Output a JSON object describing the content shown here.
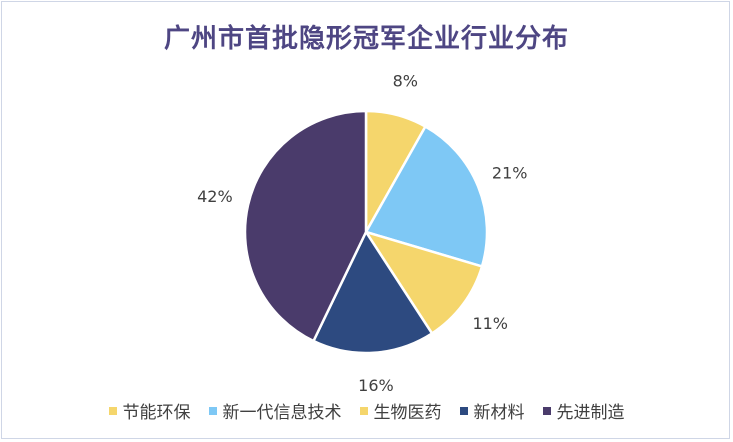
{
  "chart_data": {
    "type": "pie",
    "title": "广州市首批隐形冠军企业行业分布",
    "categories": [
      "节能环保",
      "新一代信息技术",
      "生物医药",
      "新材料",
      "先进制造"
    ],
    "values": [
      8,
      21,
      11,
      16,
      42
    ],
    "labels": [
      "8%",
      "21%",
      "11%",
      "16%",
      "42%"
    ],
    "colors": [
      "#f5d66c",
      "#7ec8f5",
      "#f5d66c",
      "#2d4a80",
      "#4a3b6b"
    ],
    "legend_position": "bottom"
  }
}
